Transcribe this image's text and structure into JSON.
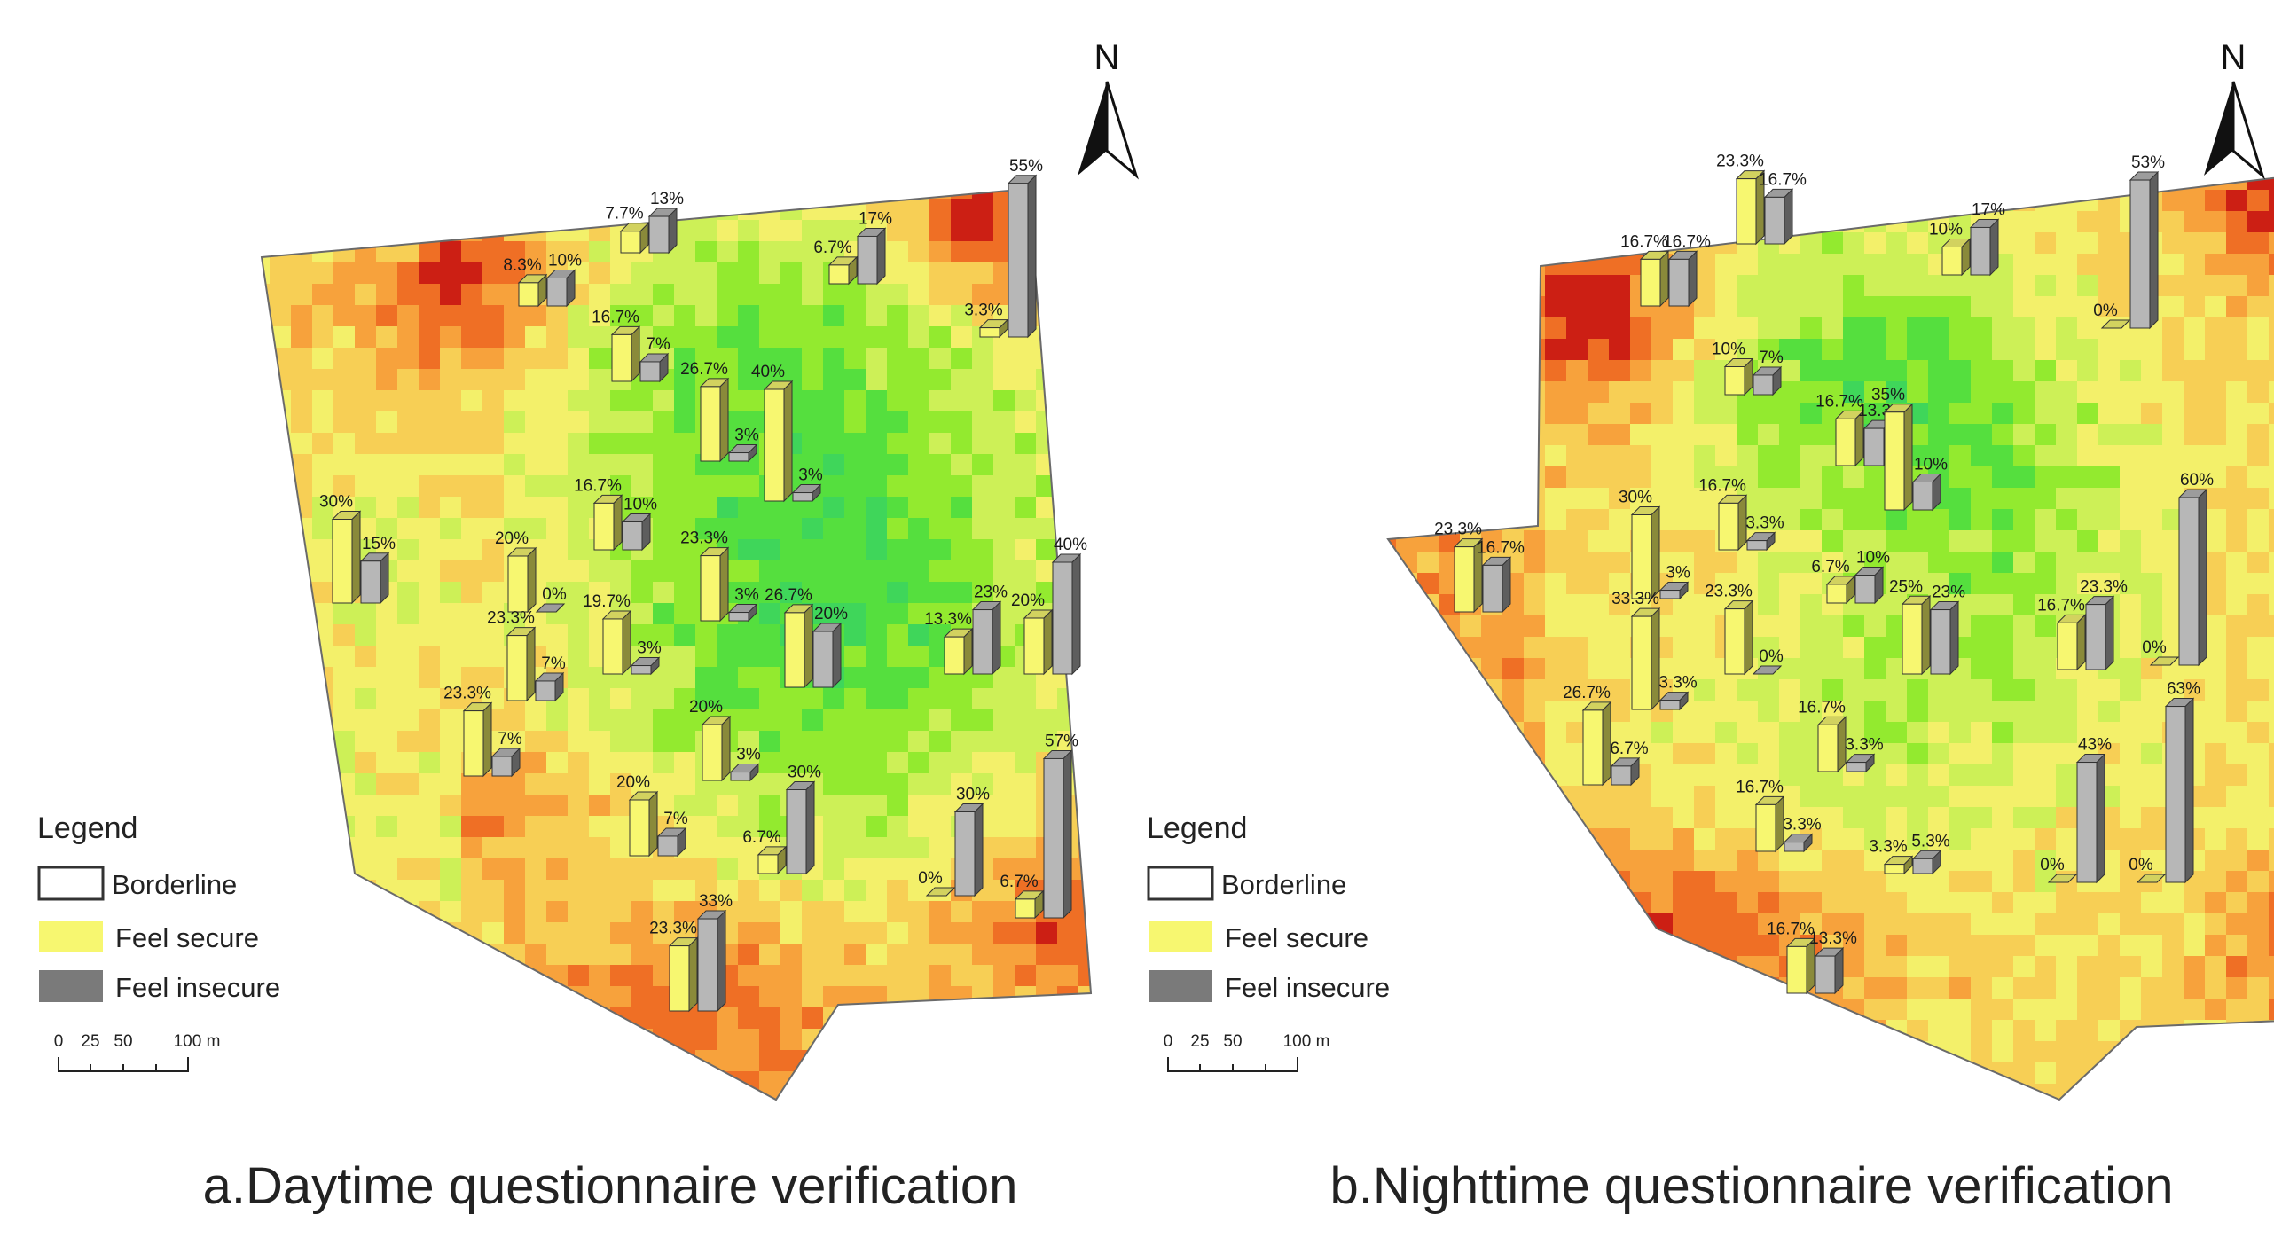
{
  "colors": {
    "secure_face": "#f7f770",
    "secure_side": "#8a8a3a",
    "insecure_face": "#b7b7b7",
    "insecure_side": "#5e5e5e",
    "ramp": [
      "#cc1f14",
      "#ef6f25",
      "#f7a23c",
      "#f7cf55",
      "#f3f06a",
      "#cdf057",
      "#93ea2f",
      "#55df3e",
      "#3fd65a"
    ]
  },
  "maps": [
    {
      "caption": "a.Daytime questionnaire verification",
      "north_label": "N",
      "legend": {
        "title": "Legend",
        "items": [
          {
            "label": "Borderline",
            "swatch": "border"
          },
          {
            "label": "Feel secure",
            "swatch": "secure"
          },
          {
            "label": "Feel insecure",
            "swatch": "insecure"
          }
        ]
      },
      "scale_bar": {
        "ticks": [
          "0",
          "25",
          "50",
          "100 m"
        ]
      },
      "sites": [
        {
          "secure": "7.7%",
          "secure_value": 7.7,
          "insecure": "13%",
          "insecure_value": 13
        },
        {
          "secure": "8.3%",
          "secure_value": 8.3,
          "insecure": "10%",
          "insecure_value": 10
        },
        {
          "secure": "6.7%",
          "secure_value": 6.7,
          "insecure": "17%",
          "insecure_value": 17
        },
        {
          "secure": "3.3%",
          "secure_value": 3.3,
          "insecure": "55%",
          "insecure_value": 55
        },
        {
          "secure": "16.7%",
          "secure_value": 16.7,
          "insecure": "7%",
          "insecure_value": 7
        },
        {
          "secure": "26.7%",
          "secure_value": 26.7,
          "insecure": "3%",
          "insecure_value": 3
        },
        {
          "secure": "40%",
          "secure_value": 40,
          "insecure": "3%",
          "insecure_value": 3
        },
        {
          "secure": "30%",
          "secure_value": 30,
          "insecure": "15%",
          "insecure_value": 15
        },
        {
          "secure": "16.7%",
          "secure_value": 16.7,
          "insecure": "10%",
          "insecure_value": 10
        },
        {
          "secure": "20%",
          "secure_value": 20,
          "insecure": "0%",
          "insecure_value": 0
        },
        {
          "secure": "23.3%",
          "secure_value": 23.3,
          "insecure": "7%",
          "insecure_value": 7
        },
        {
          "secure": "19.7%",
          "secure_value": 19.7,
          "insecure": "3%",
          "insecure_value": 3
        },
        {
          "secure": "26.7%",
          "secure_value": 26.7,
          "insecure": "20%",
          "insecure_value": 20
        },
        {
          "secure": "13.3%",
          "secure_value": 13.3,
          "insecure": "23%",
          "insecure_value": 23
        },
        {
          "secure": "20%",
          "secure_value": 20,
          "insecure": "40%",
          "insecure_value": 40
        },
        {
          "secure": "23.3%",
          "secure_value": 23.3,
          "insecure": "3%",
          "insecure_value": 3
        },
        {
          "secure": "23.3%",
          "secure_value": 23.3,
          "insecure": "7%",
          "insecure_value": 7
        },
        {
          "secure": "20%",
          "secure_value": 20,
          "insecure": "3%",
          "insecure_value": 3
        },
        {
          "secure": "20%",
          "secure_value": 20,
          "insecure": "7%",
          "insecure_value": 7
        },
        {
          "secure": "6.7%",
          "secure_value": 6.7,
          "insecure": "30%",
          "insecure_value": 30
        },
        {
          "secure": "0%",
          "secure_value": 0,
          "insecure": "30%",
          "insecure_value": 30
        },
        {
          "secure": "6.7%",
          "secure_value": 6.7,
          "insecure": "57%",
          "insecure_value": 57
        },
        {
          "secure": "23.3%",
          "secure_value": 23.3,
          "insecure": "33%",
          "insecure_value": 33
        }
      ]
    },
    {
      "caption": "b.Nighttime questionnaire verification",
      "north_label": "N",
      "legend": {
        "title": "Legend",
        "items": [
          {
            "label": "Borderline",
            "swatch": "border"
          },
          {
            "label": "Feel secure",
            "swatch": "secure"
          },
          {
            "label": "Feel insecure",
            "swatch": "insecure"
          }
        ]
      },
      "scale_bar": {
        "ticks": [
          "0",
          "25",
          "50",
          "100 m"
        ]
      },
      "sites": [
        {
          "secure": "23.3%",
          "secure_value": 23.3,
          "insecure": "16.7%",
          "insecure_value": 16.7
        },
        {
          "secure": "16.7%",
          "secure_value": 16.7,
          "insecure": "16.7%",
          "insecure_value": 16.7
        },
        {
          "secure": "10%",
          "secure_value": 10,
          "insecure": "17%",
          "insecure_value": 17
        },
        {
          "secure": "0%",
          "secure_value": 0,
          "insecure": "53%",
          "insecure_value": 53
        },
        {
          "secure": "10%",
          "secure_value": 10,
          "insecure": "7%",
          "insecure_value": 7
        },
        {
          "secure": "16.7%",
          "secure_value": 16.7,
          "insecure": "13.3%",
          "insecure_value": 13.3
        },
        {
          "secure": "35%",
          "secure_value": 35,
          "insecure": "10%",
          "insecure_value": 10
        },
        {
          "secure": "23.3%",
          "secure_value": 23.3,
          "insecure": "16.7%",
          "insecure_value": 16.7
        },
        {
          "secure": "16.7%",
          "secure_value": 16.7,
          "insecure": "3.3%",
          "insecure_value": 3.3
        },
        {
          "secure": "30%",
          "secure_value": 30,
          "insecure": "3%",
          "insecure_value": 3
        },
        {
          "secure": "6.7%",
          "secure_value": 6.7,
          "insecure": "10%",
          "insecure_value": 10
        },
        {
          "secure": "23.3%",
          "secure_value": 23.3,
          "insecure": "0%",
          "insecure_value": 0
        },
        {
          "secure": "25%",
          "secure_value": 25,
          "insecure": "23%",
          "insecure_value": 23
        },
        {
          "secure": "16.7%",
          "secure_value": 16.7,
          "insecure": "23.3%",
          "insecure_value": 23.3
        },
        {
          "secure": "0%",
          "secure_value": 0,
          "insecure": "60%",
          "insecure_value": 60
        },
        {
          "secure": "33.3%",
          "secure_value": 33.3,
          "insecure": "3.3%",
          "insecure_value": 3.3
        },
        {
          "secure": "26.7%",
          "secure_value": 26.7,
          "insecure": "6.7%",
          "insecure_value": 6.7
        },
        {
          "secure": "16.7%",
          "secure_value": 16.7,
          "insecure": "3.3%",
          "insecure_value": 3.3
        },
        {
          "secure": "16.7%",
          "secure_value": 16.7,
          "insecure": "3.3%",
          "insecure_value": 3.3
        },
        {
          "secure": "3.3%",
          "secure_value": 3.3,
          "insecure": "5.3%",
          "insecure_value": 5.3
        },
        {
          "secure": "0%",
          "secure_value": 0,
          "insecure": "43%",
          "insecure_value": 43
        },
        {
          "secure": "0%",
          "secure_value": 0,
          "insecure": "63%",
          "insecure_value": 63
        },
        {
          "secure": "16.7%",
          "secure_value": 16.7,
          "insecure": "13.3%",
          "insecure_value": 13.3
        }
      ]
    }
  ]
}
